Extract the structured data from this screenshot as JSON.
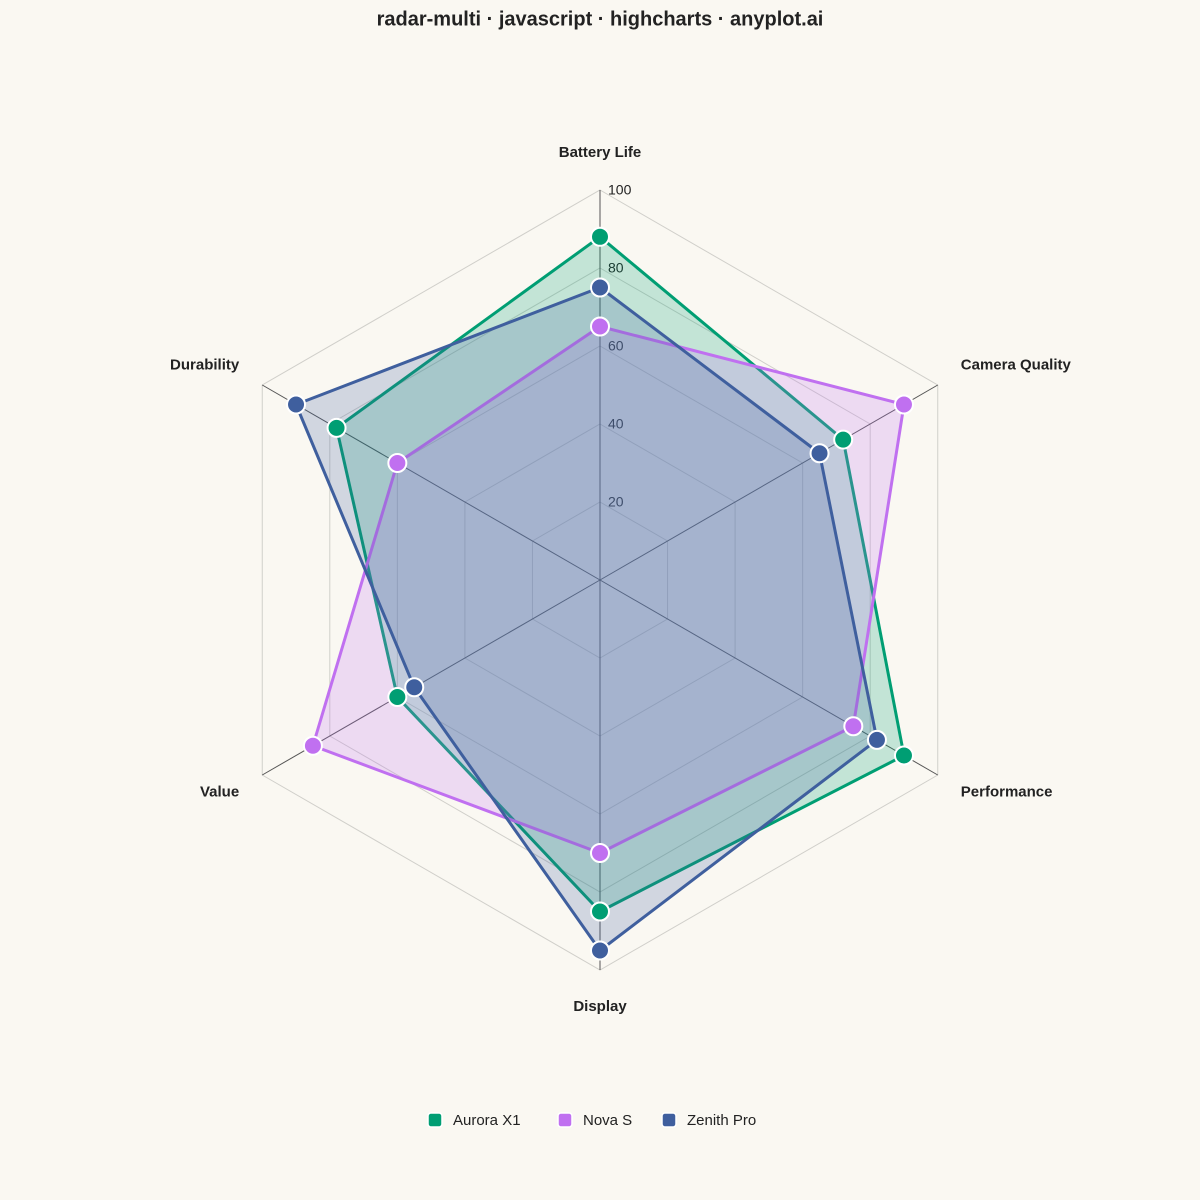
{
  "chart_data": {
    "type": "radar",
    "title": "radar-multi · javascript · highcharts · anyplot.ai",
    "categories": [
      "Battery Life",
      "Camera Quality",
      "Performance",
      "Display",
      "Value",
      "Durability"
    ],
    "series": [
      {
        "name": "Aurora X1",
        "color": "#009e73",
        "values": [
          88,
          72,
          90,
          85,
          60,
          78
        ]
      },
      {
        "name": "Nova S",
        "color": "#c070f0",
        "values": [
          65,
          90,
          75,
          70,
          85,
          60
        ]
      },
      {
        "name": "Zenith Pro",
        "color": "#3f5f9e",
        "values": [
          75,
          65,
          82,
          95,
          55,
          90
        ]
      }
    ],
    "ylim": [
      0,
      100
    ],
    "yticks": [
      20,
      40,
      60,
      80,
      100
    ],
    "grid": true,
    "legend": "bottom"
  }
}
